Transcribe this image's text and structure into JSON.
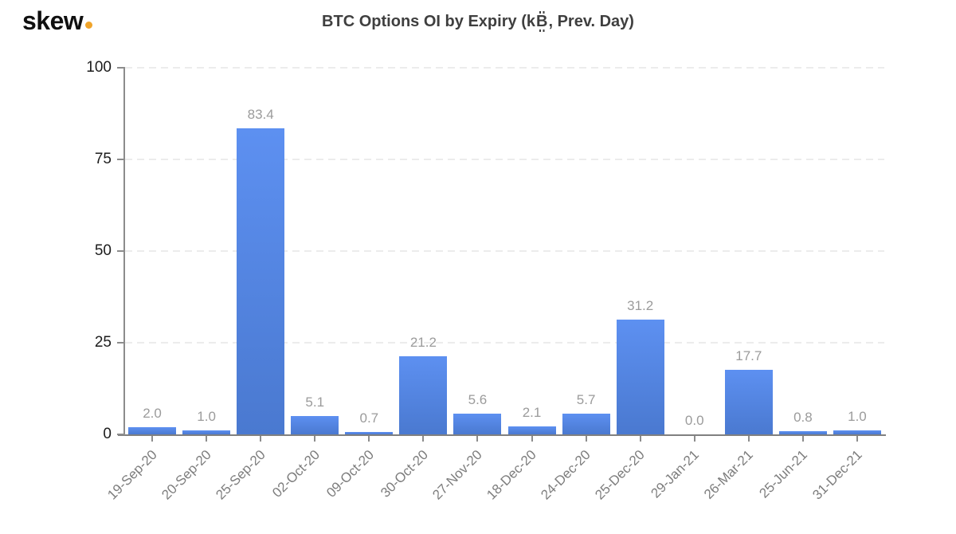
{
  "logo": {
    "text": "skew",
    "dot_color": "#f0a42a"
  },
  "title": "BTC Options OI by Expiry (k₿, Prev. Day)",
  "chart_data": {
    "type": "bar",
    "title": "BTC Options OI by Expiry (k₿, Prev. Day)",
    "unit": "k₿",
    "categories": [
      "19-Sep-20",
      "20-Sep-20",
      "25-Sep-20",
      "02-Oct-20",
      "09-Oct-20",
      "30-Oct-20",
      "27-Nov-20",
      "18-Dec-20",
      "24-Dec-20",
      "25-Dec-20",
      "29-Jan-21",
      "26-Mar-21",
      "25-Jun-21",
      "31-Dec-21"
    ],
    "values": [
      2.0,
      1.0,
      83.4,
      5.1,
      0.7,
      21.2,
      5.6,
      2.1,
      5.7,
      31.2,
      0.0,
      17.7,
      0.8,
      1.0
    ],
    "value_labels": [
      "2.0",
      "1.0",
      "83.4",
      "5.1",
      "0.7",
      "21.2",
      "5.6",
      "2.1",
      "5.7",
      "31.2",
      "0.0",
      "17.7",
      "0.8",
      "1.0"
    ],
    "xlabel": "",
    "ylabel": "",
    "ylim": [
      0,
      100
    ],
    "yticks": [
      0,
      25,
      50,
      75,
      100
    ],
    "grid": "horizontal-dashed",
    "legend": "none",
    "colors": {
      "bar_top": "#5d90f1",
      "bar_bottom": "#4a79d0",
      "value_label": "#9b9b9b",
      "x_axis_label": "#7d7d7d",
      "y_tick_label": "#1c1c1c",
      "gridline": "#ececec",
      "axis_line": "#8c8c8c",
      "baseline": "#808080"
    }
  }
}
